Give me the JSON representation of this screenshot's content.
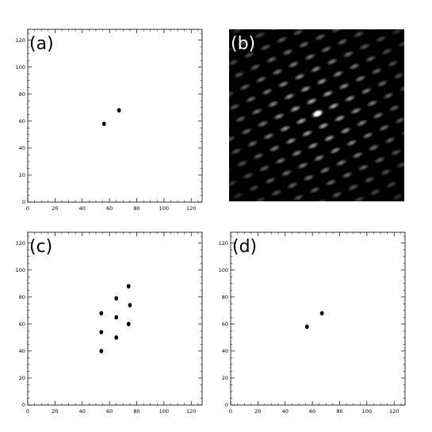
{
  "chart_data": [
    {
      "type": "scatter",
      "panel_label": "(a)",
      "xlim": [
        0,
        128
      ],
      "ylim": [
        0,
        128
      ],
      "x_ticks": [
        0,
        20,
        40,
        60,
        80,
        100,
        120
      ],
      "y_ticks": [
        0,
        20,
        40,
        60,
        80,
        100,
        120
      ],
      "points": [
        {
          "x": 56,
          "y": 58
        },
        {
          "x": 67,
          "y": 68
        }
      ]
    },
    {
      "type": "heatmap",
      "panel_label": "(b)",
      "pattern": "periodic array of elongated bright spots on black, brightest spot near centre",
      "colors": {
        "background": "#000000",
        "spot": "#ffffff"
      }
    },
    {
      "type": "scatter",
      "panel_label": "(c)",
      "xlim": [
        0,
        128
      ],
      "ylim": [
        0,
        128
      ],
      "x_ticks": [
        0,
        20,
        40,
        60,
        80,
        100,
        120
      ],
      "y_ticks": [
        0,
        20,
        40,
        60,
        80,
        100,
        120
      ],
      "points": [
        {
          "x": 74,
          "y": 88
        },
        {
          "x": 65,
          "y": 79
        },
        {
          "x": 75,
          "y": 74
        },
        {
          "x": 54,
          "y": 68
        },
        {
          "x": 65,
          "y": 65
        },
        {
          "x": 74,
          "y": 60
        },
        {
          "x": 54,
          "y": 54
        },
        {
          "x": 65,
          "y": 50
        },
        {
          "x": 54,
          "y": 40
        }
      ]
    },
    {
      "type": "scatter",
      "panel_label": "(d)",
      "xlim": [
        0,
        128
      ],
      "ylim": [
        0,
        128
      ],
      "x_ticks": [
        0,
        20,
        40,
        60,
        80,
        100,
        120
      ],
      "y_ticks": [
        0,
        20,
        40,
        60,
        80,
        100,
        120
      ],
      "points": [
        {
          "x": 56,
          "y": 58
        },
        {
          "x": 67,
          "y": 68
        }
      ]
    }
  ]
}
